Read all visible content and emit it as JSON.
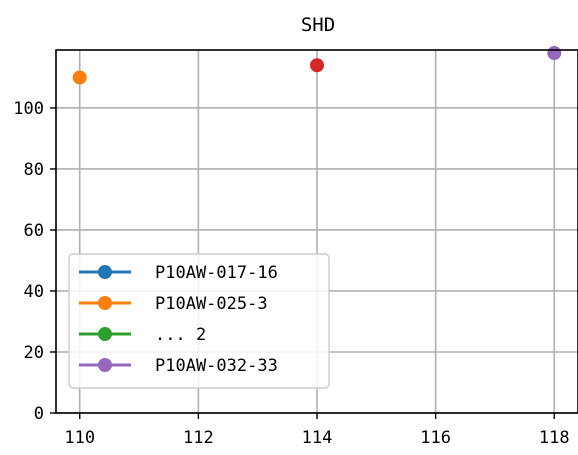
{
  "chart_data": {
    "type": "scatter",
    "title": "SHD",
    "xlabel": "",
    "ylabel": "",
    "xlim": [
      109.6,
      118.4
    ],
    "ylim": [
      0,
      119
    ],
    "xticks": [
      110,
      112,
      114,
      116,
      118
    ],
    "yticks": [
      0,
      20,
      40,
      60,
      80,
      100
    ],
    "grid": true,
    "legend_position": "lower-left",
    "series": [
      {
        "name": "P10AW-017-16",
        "color": "#1f77b4",
        "x": [],
        "y": []
      },
      {
        "name": "P10AW-025-3",
        "color": "#ff7f0e",
        "x": [
          110
        ],
        "y": [
          110
        ]
      },
      {
        "name": "... 2",
        "color": "#2ca02c",
        "x": [],
        "y": []
      },
      {
        "name": "P10AW-032-33",
        "color": "#9467bd",
        "x": [
          118
        ],
        "y": [
          118
        ]
      }
    ],
    "extra_points": [
      {
        "x": 114,
        "y": 114,
        "color": "#d62728"
      }
    ]
  }
}
